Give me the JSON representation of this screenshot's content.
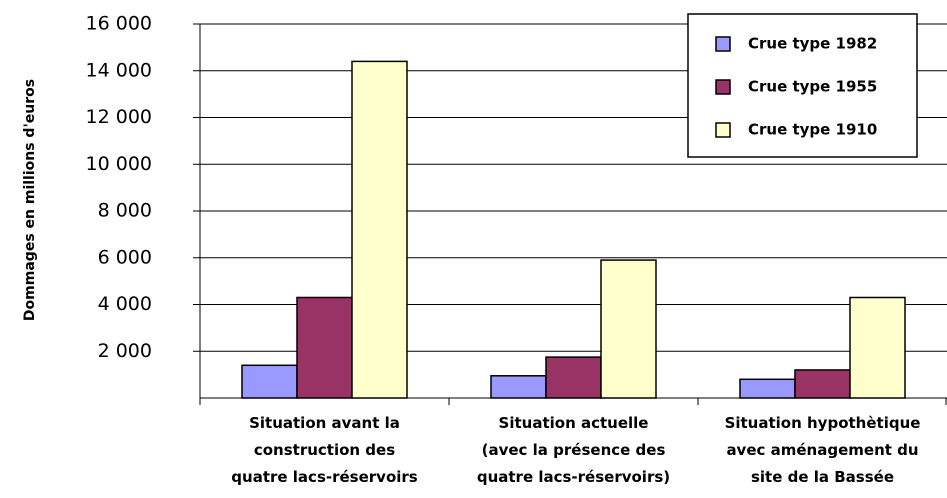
{
  "chart_data": {
    "type": "bar",
    "y_label": "Dommages en millions d'euros",
    "categories": [
      "Situation avant la\nconstruction des\nquatre lacs-réservoirs",
      "Situation actuelle\n(avec la présence des\nquatre lacs-réservoirs)",
      "Situation hypothètique\navec aménagement du\nsite de la Bassée"
    ],
    "series": [
      {
        "name": "Crue type 1982",
        "color": "#9999ff",
        "values": [
          1400,
          950,
          800
        ]
      },
      {
        "name": "Crue type 1955",
        "color": "#993366",
        "values": [
          4300,
          1750,
          1200
        ]
      },
      {
        "name": "Crue type 1910",
        "color": "#ffffcc",
        "values": [
          14400,
          5900,
          4300
        ]
      }
    ],
    "ylim": [
      0,
      16000
    ],
    "yticks": [
      {
        "value": 2000,
        "label": "2 000"
      },
      {
        "value": 4000,
        "label": "4 000"
      },
      {
        "value": 6000,
        "label": "6 000"
      },
      {
        "value": 8000,
        "label": "8 000"
      },
      {
        "value": 10000,
        "label": "10 000"
      },
      {
        "value": 12000,
        "label": "12 000"
      },
      {
        "value": 14000,
        "label": "14 000"
      },
      {
        "value": 16000,
        "label": "16 000"
      }
    ],
    "grid": true,
    "legend": "top-right"
  }
}
